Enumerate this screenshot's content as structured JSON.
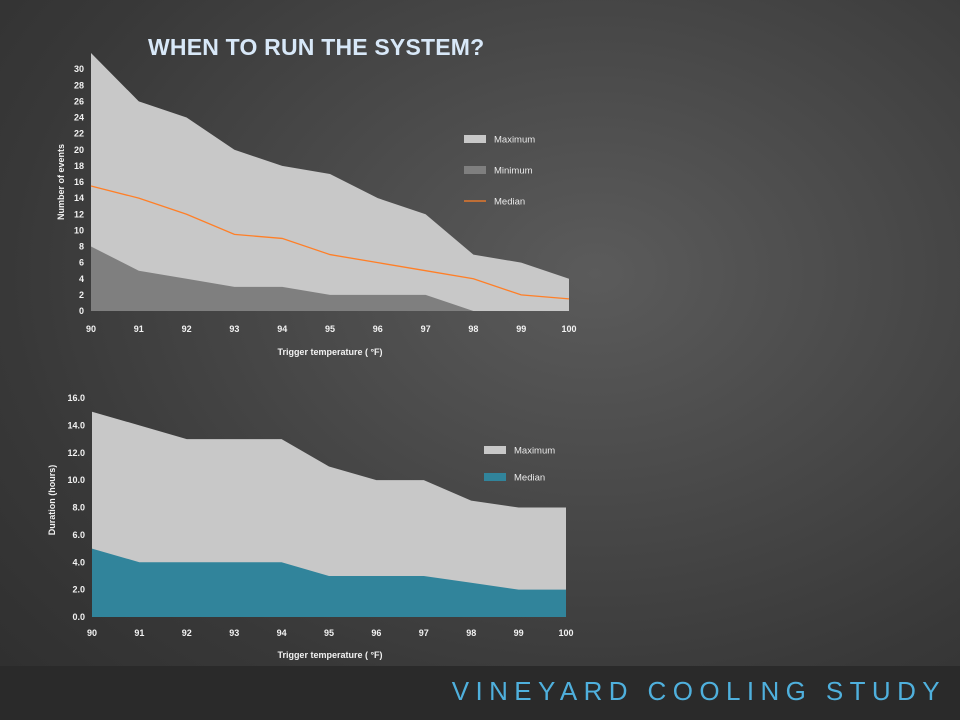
{
  "slide": {
    "title": "WHEN TO RUN THE SYSTEM?",
    "footer": "VINEYARD COOLING STUDY"
  },
  "chart_data": [
    {
      "type": "area",
      "xlabel": "Trigger temperature ( °F)",
      "ylabel": "Number of events",
      "x": [
        90,
        91,
        92,
        93,
        94,
        95,
        96,
        97,
        98,
        99,
        100
      ],
      "xlim": [
        90,
        100
      ],
      "ylim": [
        0,
        32
      ],
      "yticks": [
        "0",
        "2",
        "4",
        "6",
        "8",
        "10",
        "12",
        "14",
        "16",
        "18",
        "20",
        "22",
        "24",
        "26",
        "28",
        "30"
      ],
      "series": [
        {
          "name": "Maximum",
          "kind": "area",
          "color": "#c8c8c8",
          "values": [
            32,
            26,
            24,
            20,
            18,
            17,
            14,
            12,
            7,
            6,
            4
          ]
        },
        {
          "name": "Minimum",
          "kind": "area",
          "color": "#7f7f7f",
          "values": [
            8,
            5,
            4,
            3,
            3,
            2,
            2,
            2,
            0,
            0,
            0
          ]
        },
        {
          "name": "Median",
          "kind": "line",
          "color": "#ff7f27",
          "values": [
            15.5,
            14,
            12,
            9.5,
            9,
            7,
            6,
            5,
            4,
            2,
            1.5
          ]
        }
      ],
      "legend_position": "right",
      "grid": false
    },
    {
      "type": "area",
      "xlabel": "Trigger temperature ( °F)",
      "ylabel": "Duration (hours)",
      "x": [
        90,
        91,
        92,
        93,
        94,
        95,
        96,
        97,
        98,
        99,
        100
      ],
      "xlim": [
        90,
        100
      ],
      "ylim": [
        0,
        16
      ],
      "yticks": [
        "0.0",
        "2.0",
        "4.0",
        "6.0",
        "8.0",
        "10.0",
        "12.0",
        "14.0",
        "16.0"
      ],
      "series": [
        {
          "name": "Maximum",
          "kind": "area",
          "color": "#c8c8c8",
          "values": [
            15,
            14,
            13,
            13,
            13,
            11,
            10,
            10,
            8.5,
            8,
            8
          ]
        },
        {
          "name": "Median",
          "kind": "area",
          "color": "#31849b",
          "values": [
            5,
            4,
            4,
            4,
            4,
            3,
            3,
            3,
            2.5,
            2,
            2
          ]
        }
      ],
      "legend_position": "right",
      "grid": false
    }
  ]
}
